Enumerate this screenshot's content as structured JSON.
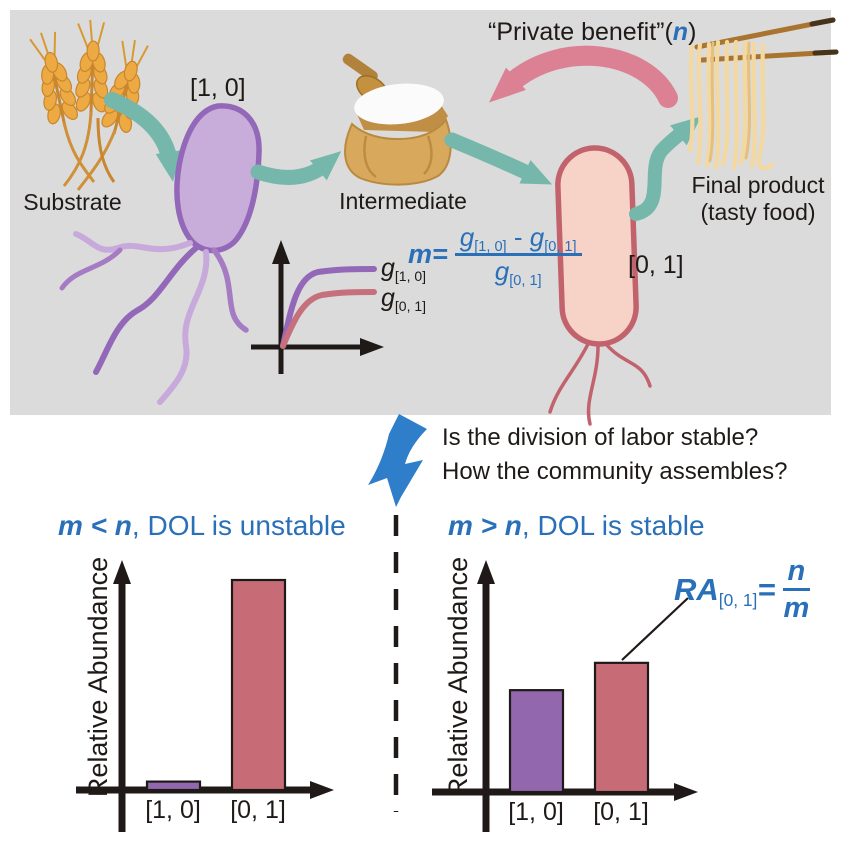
{
  "palette": {
    "panel_bg": "#dbdbdb",
    "teal_arrow": "#76b7ac",
    "pink_arrow": "#dc8094",
    "purple_cell_fill": "#c8addb",
    "purple_cell_stroke": "#9468b8",
    "pink_cell_fill": "#f7d3c7",
    "pink_cell_stroke": "#c2626d",
    "bar_purple": "#9267ae",
    "bar_pink": "#c76c77",
    "accent_blue": "#2a70b8",
    "down_arrow_blue": "#2e7ec9",
    "black": "#1f1a17"
  },
  "top_panel": {
    "substrate_label": "Substrate",
    "strain1_label": "[1, 0]",
    "intermediate_label": "Intermediate",
    "strain2_label": "[0, 1]",
    "private_benefit": {
      "prefix": "“Private benefit”(",
      "n": "n",
      "suffix": ")"
    },
    "final_product": {
      "line1": "Final product",
      "line2": "(tasty food)"
    },
    "cost_formula": {
      "lhs": "m=",
      "num_left_base": "g",
      "num_left_sub": "[1, 0]",
      "minus": "-",
      "num_right_base": "g",
      "num_right_sub": "[0, 1]",
      "den_base": "g",
      "den_sub": "[0, 1]"
    },
    "growth_inset": {
      "curve1_base": "g",
      "curve1_sub": "[1, 0]",
      "curve2_base": "g",
      "curve2_sub": "[0, 1]"
    }
  },
  "questions": {
    "line1": "Is the division of labor stable?",
    "line2": "How the community assembles?"
  },
  "left_chart": {
    "title_math": "m < n",
    "title_rest": ", DOL is unstable",
    "ylabel": "Relative Abundance",
    "categories": [
      "[1, 0]",
      "[0, 1]"
    ]
  },
  "right_chart": {
    "title_math": "m > n",
    "title_rest": ", DOL is stable",
    "ylabel": "Relative Abundance",
    "categories": [
      "[1, 0]",
      "[0, 1]"
    ],
    "ra_formula": {
      "base": "RA",
      "sub": "[0, 1]",
      "eq": "=",
      "num": "n",
      "den": "m"
    }
  },
  "chart_data": [
    {
      "type": "bar",
      "title": "m < n, DOL is unstable",
      "xlabel": "",
      "ylabel": "Relative Abundance",
      "categories": [
        "[1, 0]",
        "[0, 1]"
      ],
      "values": [
        0.04,
        1.0
      ],
      "bar_colors": [
        "#9267ae",
        "#c76c77"
      ],
      "ylim": [
        0,
        1.1
      ],
      "grid": false,
      "legend": false
    },
    {
      "type": "bar",
      "title": "m > n, DOL is stable",
      "xlabel": "",
      "ylabel": "Relative Abundance",
      "categories": [
        "[1, 0]",
        "[0, 1]"
      ],
      "values": [
        0.485,
        0.615
      ],
      "bar_colors": [
        "#9267ae",
        "#c76c77"
      ],
      "ylim": [
        0,
        1.1
      ],
      "grid": false,
      "legend": false,
      "annotation": "RA[0, 1] = n/m"
    }
  ]
}
